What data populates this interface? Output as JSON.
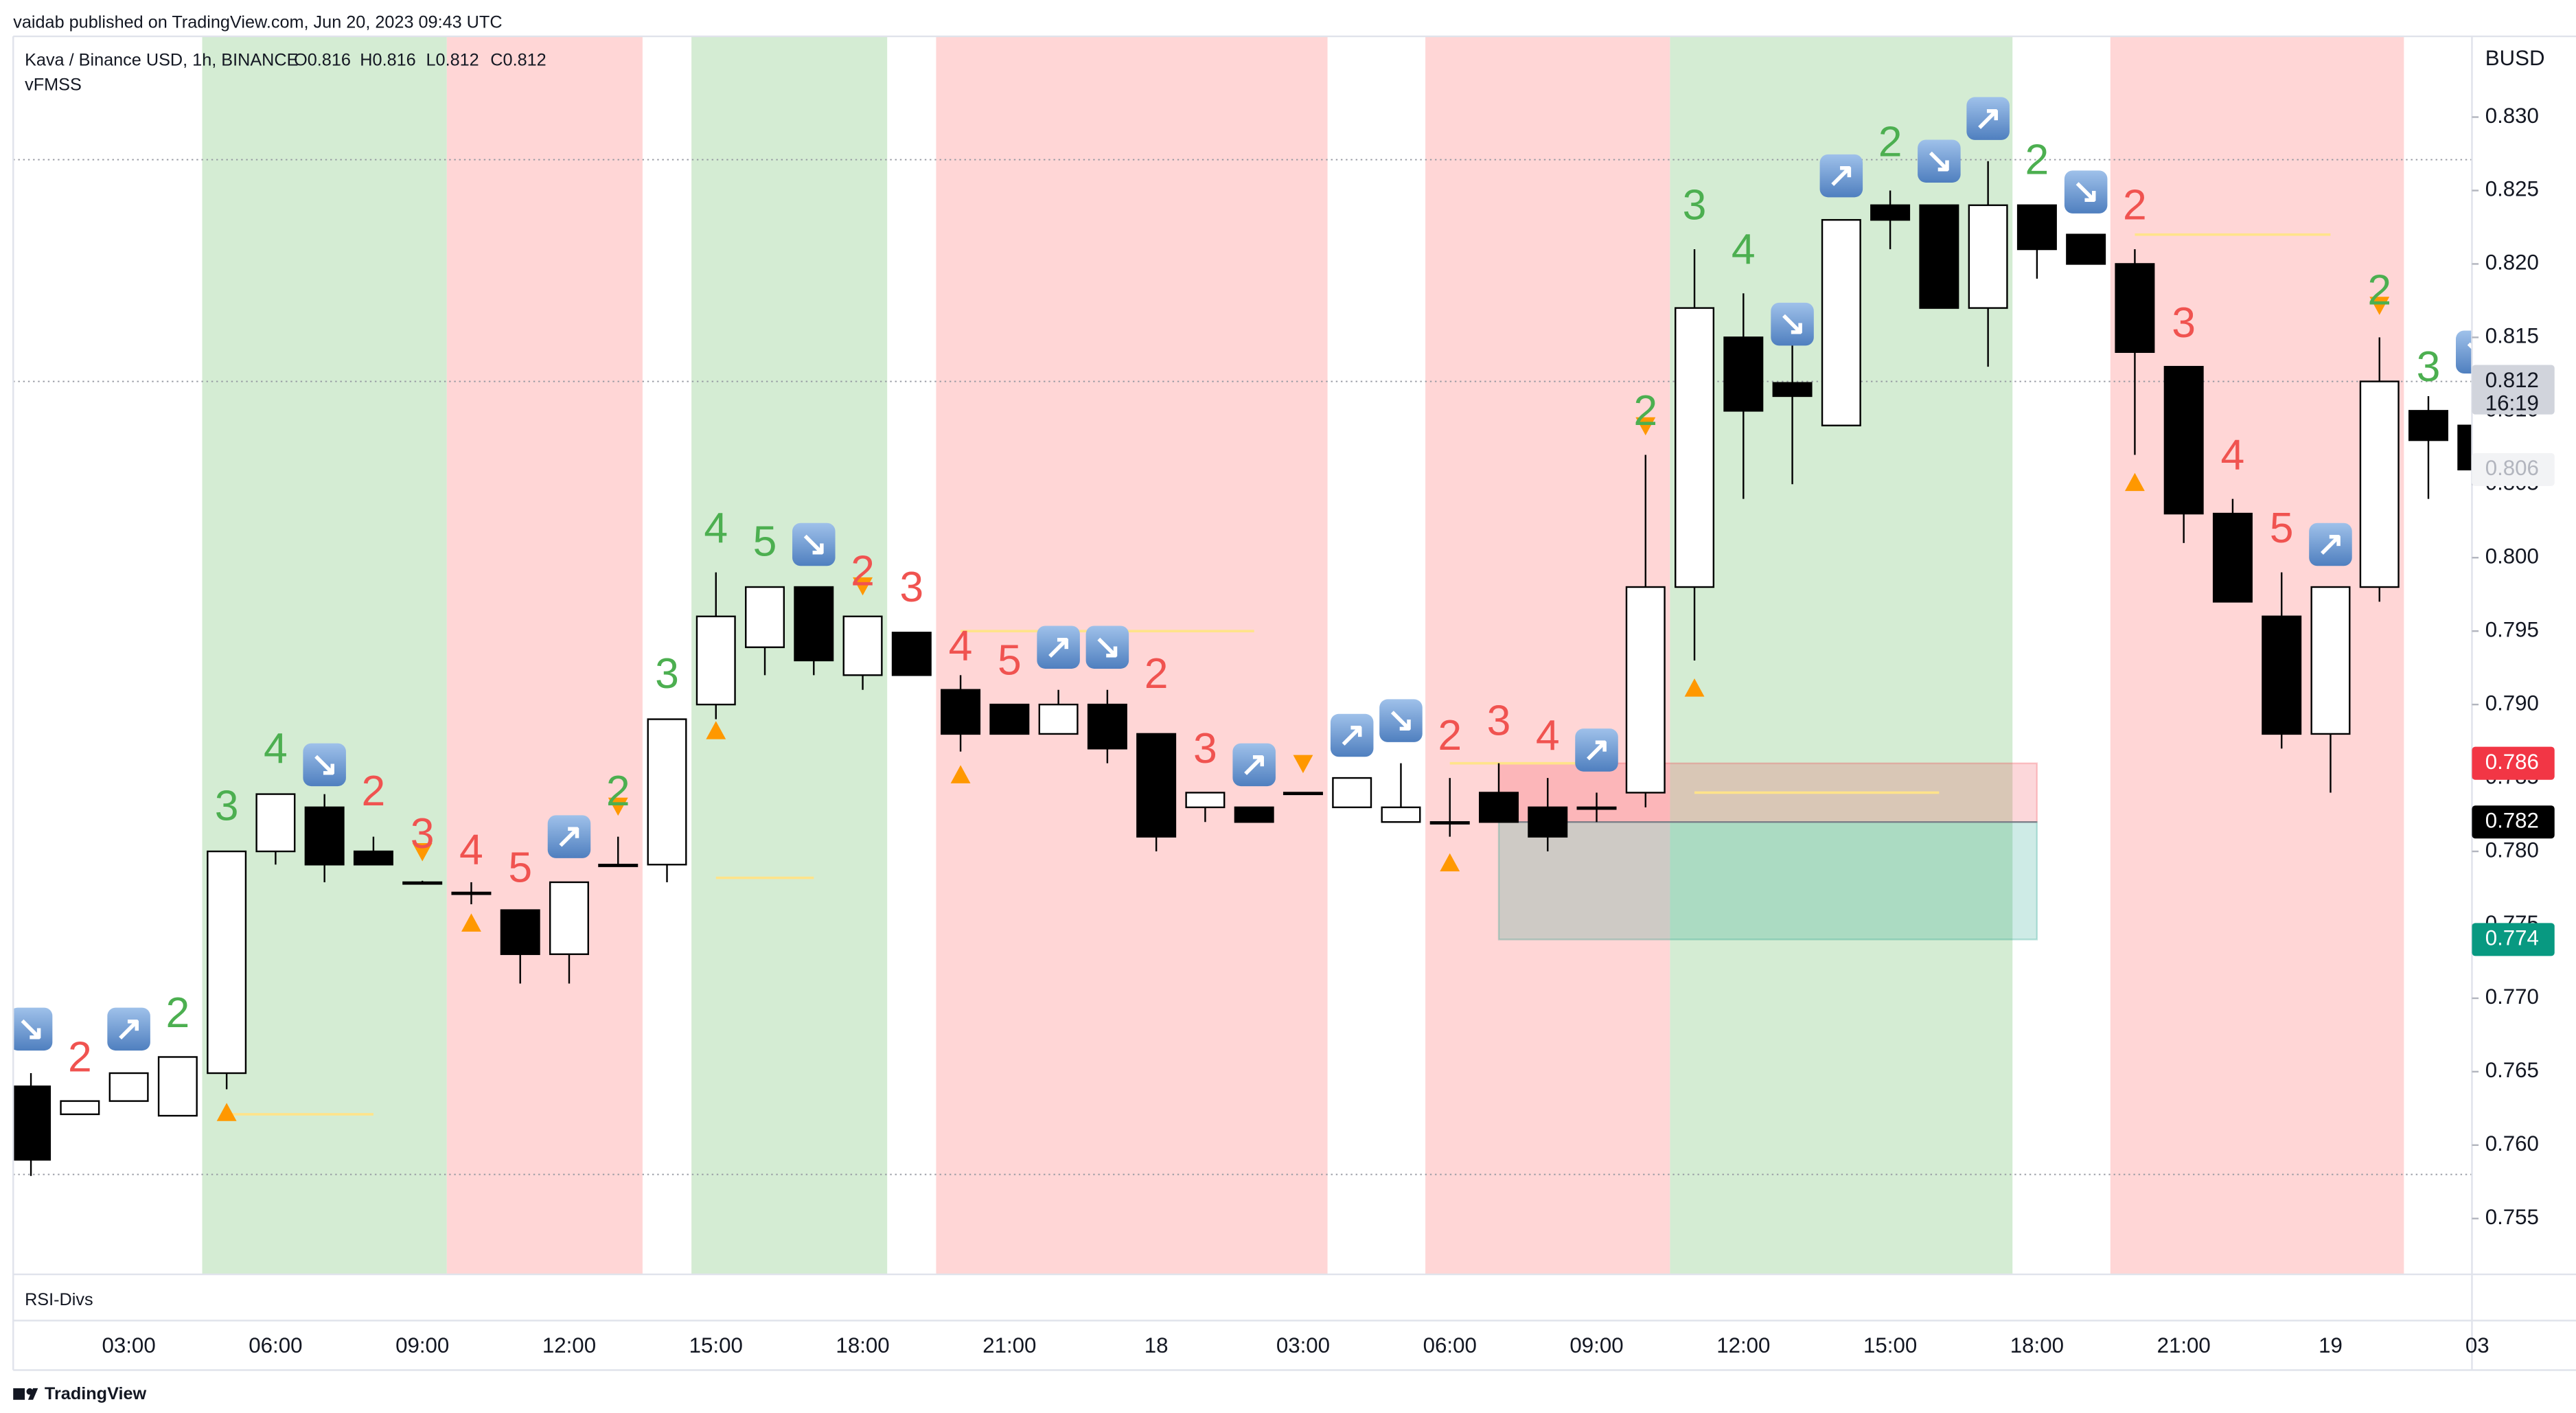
{
  "header": {
    "published": "vaidab published on TradingView.com, Jun 20, 2023 09:43 UTC",
    "symbol": "Kava / Binance USD, 1h, BINANCE",
    "ohlc": [
      "O0.816",
      "H0.816",
      "L0.812",
      "C0.812"
    ],
    "indicator": "vFMSS",
    "pane": "RSI-Divs",
    "brand": "TradingView"
  },
  "chart_data": {
    "type": "candlestick",
    "currency": "BUSD",
    "categories": [
      null,
      null,
      "03:00",
      null,
      null,
      "06:00",
      null,
      null,
      "09:00",
      null,
      null,
      "12:00",
      null,
      null,
      "15:00",
      null,
      null,
      "18:00",
      null,
      null,
      "21:00",
      null,
      null,
      "18",
      null,
      null,
      "03:00",
      null,
      null,
      "06:00",
      null,
      null,
      "09:00",
      null,
      null,
      "12:00",
      null,
      null,
      "15:00",
      null,
      null,
      "18:00",
      null,
      null,
      "21:00",
      null,
      null,
      "19",
      null,
      null,
      "03"
    ],
    "open": [
      0.764,
      0.7621,
      0.763,
      0.762,
      0.7649,
      0.78,
      0.783,
      0.78,
      0.7779,
      0.7772,
      0.776,
      0.773,
      0.7791,
      0.7791,
      0.79,
      0.7939,
      0.798,
      0.792,
      0.7949,
      0.791,
      0.79,
      0.788,
      0.79,
      0.788,
      0.783,
      0.783,
      0.784,
      0.783,
      0.782,
      0.782,
      0.784,
      0.783,
      0.783,
      0.784,
      0.798,
      0.815,
      0.8119,
      0.809,
      0.824,
      0.824,
      0.817,
      0.824,
      0.822,
      0.82,
      0.813,
      0.803,
      0.796,
      0.788,
      0.798,
      0.81,
      0.809
    ],
    "high": [
      0.7649,
      0.763,
      0.7649,
      0.766,
      0.78,
      0.7839,
      0.7839,
      0.781,
      0.778,
      0.7779,
      0.776,
      0.7779,
      0.781,
      0.789,
      0.799,
      0.798,
      0.798,
      0.796,
      0.7949,
      0.792,
      0.79,
      0.791,
      0.791,
      0.788,
      0.784,
      0.783,
      0.784,
      0.785,
      0.786,
      0.785,
      0.786,
      0.785,
      0.784,
      0.807,
      0.821,
      0.818,
      0.815,
      0.823,
      0.825,
      0.824,
      0.827,
      0.824,
      0.822,
      0.821,
      0.813,
      0.804,
      0.799,
      0.798,
      0.815,
      0.811,
      0.809
    ],
    "low": [
      0.7579,
      0.7621,
      0.763,
      0.762,
      0.7638,
      0.7791,
      0.7779,
      0.7791,
      0.7779,
      0.7764,
      0.771,
      0.771,
      0.7791,
      0.7779,
      0.789,
      0.792,
      0.792,
      0.791,
      0.792,
      0.7868,
      0.788,
      0.788,
      0.786,
      0.78,
      0.782,
      0.782,
      0.784,
      0.783,
      0.782,
      0.781,
      0.782,
      0.78,
      0.782,
      0.783,
      0.793,
      0.804,
      0.805,
      0.809,
      0.821,
      0.817,
      0.813,
      0.819,
      0.82,
      0.807,
      0.801,
      0.797,
      0.787,
      0.784,
      0.797,
      0.804,
      0.806
    ],
    "close": [
      0.759,
      0.763,
      0.7649,
      0.766,
      0.78,
      0.7839,
      0.7791,
      0.7791,
      0.7779,
      0.7771,
      0.773,
      0.7779,
      0.7791,
      0.789,
      0.796,
      0.798,
      0.793,
      0.796,
      0.792,
      0.788,
      0.788,
      0.79,
      0.787,
      0.781,
      0.784,
      0.782,
      0.784,
      0.785,
      0.783,
      0.782,
      0.782,
      0.781,
      0.783,
      0.798,
      0.817,
      0.81,
      0.811,
      0.823,
      0.823,
      0.817,
      0.824,
      0.821,
      0.82,
      0.814,
      0.803,
      0.797,
      0.788,
      0.798,
      0.812,
      0.808,
      0.806
    ],
    "up_color": "#ffffff",
    "down_color": "#000000",
    "ylim": [
      0.7512,
      0.8355
    ],
    "yticks": [
      0.755,
      {
        "value": 0.76,
        "label": "0.760"
      },
      0.765,
      {
        "value": 0.77,
        "label": "0.770"
      },
      0.775,
      {
        "value": 0.78,
        "label": "0.780"
      },
      0.785,
      {
        "value": 0.79,
        "label": "0.790"
      },
      0.795,
      {
        "value": 0.8,
        "label": "0.800"
      },
      0.805,
      {
        "value": 0.81,
        "label": "0.810"
      },
      0.815,
      {
        "value": 0.82,
        "label": "0.820"
      },
      0.825,
      {
        "value": 0.83,
        "label": "0.830"
      }
    ],
    "zones": [
      {
        "from": 4,
        "to": 8,
        "color": "#d4ecd3"
      },
      {
        "from": 9,
        "to": 12,
        "color": "#ffd6d6"
      },
      {
        "from": 14,
        "to": 17,
        "color": "#d4ecd3"
      },
      {
        "from": 19,
        "to": 26,
        "color": "#ffd6d6"
      },
      {
        "from": 29,
        "to": 33,
        "color": "#ffd6d6"
      },
      {
        "from": 34,
        "to": 40,
        "color": "#d4ecd3"
      },
      {
        "from": 43,
        "to": 48,
        "color": "#ffd6d6"
      }
    ],
    "dotted_levels": [
      0.8271,
      0.812,
      0.758
    ],
    "levels": [
      {
        "from": 4,
        "to": 7,
        "price": 0.7621
      },
      {
        "from": 14,
        "to": 16,
        "price": 0.7782
      },
      {
        "from": 19,
        "to": 25,
        "price": 0.795
      },
      {
        "from": 29,
        "to": 32,
        "price": 0.786
      },
      {
        "from": 34,
        "to": 39,
        "price": 0.784
      },
      {
        "from": 43,
        "to": 47,
        "price": 0.822
      }
    ],
    "level_color": "#ffe38a",
    "position": {
      "from": 30,
      "to": 41,
      "stop": 0.786,
      "entry": 0.782,
      "target": 0.774
    },
    "signals": [
      {
        "index": 1,
        "price": 0.7658,
        "text": "2",
        "color": "#f05350"
      },
      {
        "index": 3,
        "price": 0.7688,
        "text": "2",
        "color": "#4caf50"
      },
      {
        "index": 4,
        "price": 0.7829,
        "text": "3",
        "color": "#4caf50"
      },
      {
        "index": 5,
        "price": 0.7868,
        "text": "4",
        "color": "#4caf50"
      },
      {
        "index": 7,
        "price": 0.7839,
        "text": "2",
        "color": "#f05350"
      },
      {
        "index": 8,
        "price": 0.781,
        "text": "3",
        "color": "#f05350"
      },
      {
        "index": 9,
        "price": 0.7799,
        "text": "4",
        "color": "#f05350"
      },
      {
        "index": 10,
        "price": 0.7787,
        "text": "5",
        "color": "#f05350"
      },
      {
        "index": 12,
        "price": 0.7839,
        "text": "2",
        "color": "#4caf50"
      },
      {
        "index": 13,
        "price": 0.7919,
        "text": "3",
        "color": "#4caf50"
      },
      {
        "index": 14,
        "price": 0.8018,
        "text": "4",
        "color": "#4caf50"
      },
      {
        "index": 15,
        "price": 0.8009,
        "text": "5",
        "color": "#4caf50"
      },
      {
        "index": 17,
        "price": 0.7989,
        "text": "2",
        "color": "#f05350"
      },
      {
        "index": 18,
        "price": 0.7978,
        "text": "3",
        "color": "#f05350"
      },
      {
        "index": 19,
        "price": 0.7938,
        "text": "4",
        "color": "#f05350"
      },
      {
        "index": 20,
        "price": 0.7928,
        "text": "5",
        "color": "#f05350"
      },
      {
        "index": 23,
        "price": 0.7919,
        "text": "2",
        "color": "#f05350"
      },
      {
        "index": 24,
        "price": 0.7868,
        "text": "3",
        "color": "#f05350"
      },
      {
        "index": 29,
        "price": 0.7877,
        "text": "2",
        "color": "#f05350"
      },
      {
        "index": 30,
        "price": 0.7887,
        "text": "3",
        "color": "#f05350"
      },
      {
        "index": 31,
        "price": 0.7877,
        "text": "4",
        "color": "#f05350"
      },
      {
        "index": 33,
        "price": 0.8098,
        "text": "2",
        "color": "#4caf50"
      },
      {
        "index": 34,
        "price": 0.8238,
        "text": "3",
        "color": "#4caf50"
      },
      {
        "index": 35,
        "price": 0.8208,
        "text": "4",
        "color": "#4caf50"
      },
      {
        "index": 38,
        "price": 0.8281,
        "text": "2",
        "color": "#4caf50"
      },
      {
        "index": 41,
        "price": 0.8269,
        "text": "2",
        "color": "#4caf50"
      },
      {
        "index": 43,
        "price": 0.8238,
        "text": "2",
        "color": "#f05350"
      },
      {
        "index": 44,
        "price": 0.8158,
        "text": "3",
        "color": "#f05350"
      },
      {
        "index": 45,
        "price": 0.8068,
        "text": "4",
        "color": "#f05350"
      },
      {
        "index": 46,
        "price": 0.8018,
        "text": "5",
        "color": "#f05350"
      },
      {
        "index": 48,
        "price": 0.818,
        "text": "2",
        "color": "#4caf50"
      },
      {
        "index": 49,
        "price": 0.8128,
        "text": "3",
        "color": "#4caf50"
      }
    ],
    "arrows": [
      {
        "index": 0,
        "price": 0.7679,
        "text": "↘"
      },
      {
        "index": 2,
        "price": 0.7679,
        "text": "↗"
      },
      {
        "index": 6,
        "price": 0.7859,
        "text": "↘"
      },
      {
        "index": 11,
        "price": 0.781,
        "text": "↗"
      },
      {
        "index": 16,
        "price": 0.8009,
        "text": "↘"
      },
      {
        "index": 21,
        "price": 0.7939,
        "text": "↗"
      },
      {
        "index": 22,
        "price": 0.7939,
        "text": "↘"
      },
      {
        "index": 25,
        "price": 0.7859,
        "text": "↗"
      },
      {
        "index": 27,
        "price": 0.7879,
        "text": "↗"
      },
      {
        "index": 28,
        "price": 0.7889,
        "text": "↘"
      },
      {
        "index": 32,
        "price": 0.7869,
        "text": "↗"
      },
      {
        "index": 36,
        "price": 0.8159,
        "text": "↘"
      },
      {
        "index": 37,
        "price": 0.826,
        "text": "↗"
      },
      {
        "index": 39,
        "price": 0.827,
        "text": "↘"
      },
      {
        "index": 40,
        "price": 0.8299,
        "text": "↗"
      },
      {
        "index": 42,
        "price": 0.8249,
        "text": "↘"
      },
      {
        "index": 47,
        "price": 0.8009,
        "text": "↗"
      },
      {
        "index": 50,
        "price": 0.814,
        "text": "↘"
      }
    ],
    "up_triangles": [
      {
        "index": 4,
        "price": 0.7622
      },
      {
        "index": 9,
        "price": 0.7751
      },
      {
        "index": 14,
        "price": 0.7882
      },
      {
        "index": 19,
        "price": 0.7852
      },
      {
        "index": 29,
        "price": 0.7792
      },
      {
        "index": 34,
        "price": 0.7911
      },
      {
        "index": 43,
        "price": 0.8051
      }
    ],
    "down_triangles": [
      {
        "index": 8,
        "price": 0.78
      },
      {
        "index": 12,
        "price": 0.7831
      },
      {
        "index": 17,
        "price": 0.7981
      },
      {
        "index": 26,
        "price": 0.786
      },
      {
        "index": 33,
        "price": 0.809
      },
      {
        "index": 48,
        "price": 0.8172
      }
    ],
    "triangle_color": "#ff9800",
    "price_tags": [
      {
        "value": 0.812,
        "sub": "16:19",
        "bg": "#d1d4dc",
        "fg": "#131722"
      },
      {
        "value": 0.806,
        "bg": "#f2f3f5",
        "fg": "#b2b5be"
      },
      {
        "value": 0.786,
        "bg": "#f23645",
        "fg": "#ffffff"
      },
      {
        "value": 0.782,
        "bg": "#000000",
        "fg": "#ffffff"
      },
      {
        "value": 0.774,
        "bg": "#089981",
        "fg": "#ffffff"
      }
    ]
  }
}
